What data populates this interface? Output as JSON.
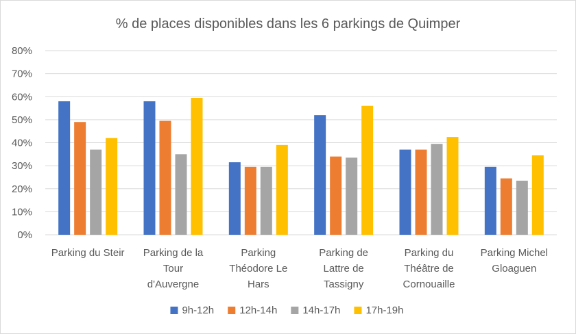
{
  "chart_data": {
    "type": "bar",
    "title": "% de places disponibles dans les 6 parkings de Quimper",
    "xlabel": "",
    "ylabel": "",
    "ylim": [
      0,
      80
    ],
    "y_ticks": [
      "0%",
      "10%",
      "20%",
      "30%",
      "40%",
      "50%",
      "60%",
      "70%",
      "80%"
    ],
    "y_tick_values": [
      0,
      10,
      20,
      30,
      40,
      50,
      60,
      70,
      80
    ],
    "grid": true,
    "legend_position": "bottom",
    "categories": [
      [
        "Parking du Steir"
      ],
      [
        "Parking de la",
        "Tour",
        "d'Auvergne"
      ],
      [
        "Parking",
        "Théodore Le",
        "Hars"
      ],
      [
        "Parking de",
        "Lattre de",
        "Tassigny"
      ],
      [
        "Parking du",
        "Théâtre de",
        "Cornouaille"
      ],
      [
        "Parking Michel",
        "Gloaguen"
      ]
    ],
    "series": [
      {
        "name": "9h-12h",
        "color": "#4472c4",
        "values": [
          58,
          58,
          31.5,
          52,
          37,
          29.5
        ]
      },
      {
        "name": "12h-14h",
        "color": "#ed7d31",
        "values": [
          49,
          49.5,
          29.5,
          34,
          37,
          24.5
        ]
      },
      {
        "name": "14h-17h",
        "color": "#a5a5a5",
        "values": [
          37,
          35,
          29.5,
          33.5,
          39.5,
          23.5
        ]
      },
      {
        "name": "17h-19h",
        "color": "#ffc000",
        "values": [
          42,
          59.5,
          39,
          56,
          42.5,
          34.5
        ]
      }
    ]
  }
}
